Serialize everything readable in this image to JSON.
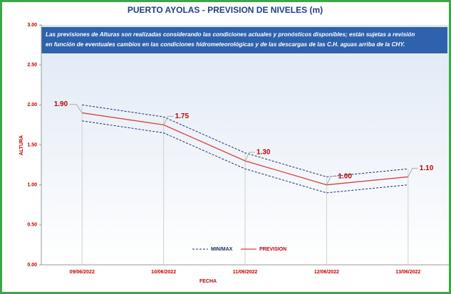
{
  "chart_data": {
    "type": "line",
    "title": "PUERTO AYOLAS - PREVISION DE NIVELES (m)",
    "note": [
      "Las previsiones de Alturas son realizadas considerando las condiciones actuales y pronósticos disponibles;  están sujetas a revisión",
      "en función de eventuales cambios en las condiciones hidrometeorológicas y de las descargas de las C.H. aguas arriba de la CHY."
    ],
    "y_label": "ALTURA",
    "x_label": "FECHA",
    "categories": [
      "09/06/2022",
      "10/06/2022",
      "11/06/2022",
      "12/06/2022",
      "13/06/2022"
    ],
    "band": {
      "name": "MIN/MAX",
      "color": "#1f2d6b",
      "max": [
        2.0,
        1.85,
        1.4,
        1.1,
        1.2
      ],
      "min": [
        1.8,
        1.65,
        1.2,
        0.9,
        1.0
      ]
    },
    "series": [
      {
        "name": "PREVISION",
        "color": "#d9403a",
        "values": [
          1.9,
          1.75,
          1.3,
          1.0,
          1.1
        ],
        "value_labels": [
          "1.90",
          "1.75",
          "1.30",
          "1.00",
          "1.10"
        ]
      }
    ],
    "ylim": [
      0,
      3
    ],
    "yticks": [
      {
        "value": 0,
        "label": "0.00"
      },
      {
        "value": 0.5,
        "label": "0.50"
      },
      {
        "value": 1,
        "label": "1.00"
      },
      {
        "value": 1.5,
        "label": "1.50"
      },
      {
        "value": 2,
        "label": "2.00"
      },
      {
        "value": 2.5,
        "label": "2.50"
      },
      {
        "value": 3,
        "label": "3.00"
      }
    ]
  }
}
